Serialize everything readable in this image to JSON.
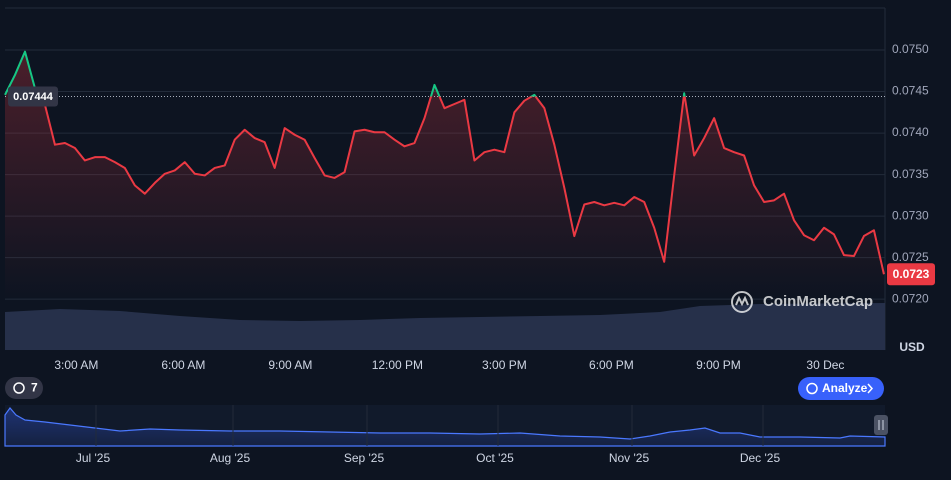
{
  "chart_data": {
    "type": "line",
    "ylabel": "USD",
    "watermark": "CoinMarketCap",
    "reference_price": 0.07444,
    "xlim": [
      1,
      25.67
    ],
    "xticks": [
      {
        "value": 3,
        "label": "3:00 AM"
      },
      {
        "value": 6,
        "label": "6:00 AM"
      },
      {
        "value": 9,
        "label": "9:00 AM"
      },
      {
        "value": 12,
        "label": "12:00 PM"
      },
      {
        "value": 15,
        "label": "3:00 PM"
      },
      {
        "value": 18,
        "label": "6:00 PM"
      },
      {
        "value": 21,
        "label": "9:00 PM"
      },
      {
        "value": 24,
        "label": "30 Dec"
      }
    ],
    "ylim": [
      0.0714,
      0.0755
    ],
    "yticks": [
      {
        "value": 0.072,
        "label": "0.0720"
      },
      0.0725,
      {
        "value": 0.073,
        "label": "0.0730"
      },
      0.0735,
      {
        "value": 0.074,
        "label": "0.0740"
      },
      0.0745,
      {
        "value": 0.075,
        "label": "0.0750"
      }
    ],
    "grid": true,
    "up_color": "#16c784",
    "down_color": "#ea3943",
    "series": [
      {
        "name": "Price",
        "x": [
          1,
          1.28,
          1.56,
          1.84,
          2.12,
          2.4,
          2.68,
          2.96,
          3.24,
          3.52,
          3.8,
          4.08,
          4.36,
          4.64,
          4.92,
          5.2,
          5.48,
          5.76,
          6.04,
          6.32,
          6.6,
          6.88,
          7.16,
          7.44,
          7.72,
          8,
          8.28,
          8.56,
          8.84,
          9.12,
          9.4,
          9.68,
          9.96,
          10.24,
          10.52,
          10.8,
          11.08,
          11.36,
          11.64,
          11.92,
          12.2,
          12.48,
          12.76,
          13.04,
          13.32,
          13.6,
          13.88,
          14.16,
          14.44,
          14.72,
          15,
          15.28,
          15.56,
          15.84,
          16.12,
          16.4,
          16.68,
          16.96,
          17.24,
          17.52,
          17.8,
          18.08,
          18.36,
          18.64,
          18.92,
          19.2,
          19.48,
          19.76,
          20.04,
          20.32,
          20.6,
          20.88,
          21.16,
          21.44,
          21.72,
          22,
          22.28,
          22.56,
          22.84,
          23.12,
          23.4,
          23.68,
          23.96,
          24.24,
          24.52,
          24.8,
          25.08,
          25.36,
          25.64
        ],
        "values": [
          0.07446,
          0.0747,
          0.07498,
          0.07454,
          0.07434,
          0.07386,
          0.07388,
          0.07382,
          0.07367,
          0.07371,
          0.07371,
          0.07365,
          0.07358,
          0.07337,
          0.07327,
          0.0734,
          0.07351,
          0.07355,
          0.07365,
          0.07351,
          0.07349,
          0.07358,
          0.07361,
          0.07392,
          0.07404,
          0.07394,
          0.07389,
          0.07358,
          0.07406,
          0.07398,
          0.07392,
          0.0737,
          0.07349,
          0.07346,
          0.07353,
          0.07402,
          0.07404,
          0.07401,
          0.07401,
          0.07392,
          0.07384,
          0.07388,
          0.07418,
          0.07458,
          0.0743,
          0.07435,
          0.0744,
          0.07367,
          0.07377,
          0.0738,
          0.07377,
          0.07425,
          0.07439,
          0.07446,
          0.0743,
          0.07386,
          0.07334,
          0.07276,
          0.07314,
          0.07317,
          0.07313,
          0.07316,
          0.07313,
          0.07323,
          0.07317,
          0.07286,
          0.07245,
          0.07349,
          0.07448,
          0.07373,
          0.07394,
          0.07418,
          0.07382,
          0.07377,
          0.07373,
          0.07337,
          0.07317,
          0.07319,
          0.07327,
          0.07295,
          0.07277,
          0.07271,
          0.07286,
          0.07278,
          0.07253,
          0.07252,
          0.07276,
          0.07283,
          0.0723
        ]
      }
    ],
    "navigator": {
      "labels": [
        "Jul '25",
        "Aug '25",
        "Sep '25",
        "Oct '25",
        "Nov '25",
        "Dec '25"
      ]
    },
    "controls": {
      "history_count": 7,
      "analyze": "Analyze"
    }
  }
}
